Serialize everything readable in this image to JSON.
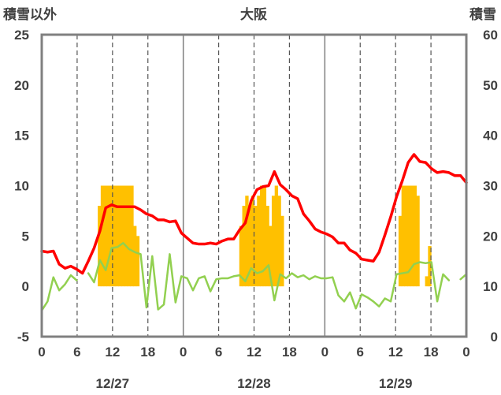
{
  "chart_data": {
    "type": "bar",
    "title": "大阪",
    "left_axis_label": "積雪以外",
    "right_axis_label": "積雪",
    "ylim_left": [
      -5,
      25
    ],
    "ylim_right": [
      0,
      60
    ],
    "yticks_left": [
      "25",
      "20",
      "15",
      "10",
      "5",
      "0",
      "-5"
    ],
    "yticks_right": [
      "60",
      "50",
      "40",
      "30",
      "20",
      "10",
      "0"
    ],
    "xtick_labels": [
      "0",
      "6",
      "12",
      "18",
      "0",
      "6",
      "12",
      "18",
      "0",
      "6",
      "12",
      "18",
      "0"
    ],
    "date_labels": [
      "12/27",
      "12/28",
      "12/29"
    ],
    "grid": "vertical",
    "colors": {
      "bar": "#FFC000",
      "red_line": "#FF0000",
      "green_line": "#92D050",
      "purple_line": "#7030A0",
      "frame": "#808080"
    },
    "series": [
      {
        "kind": "bar",
        "values": [
          0,
          0,
          0,
          0,
          0,
          0,
          0,
          0,
          0,
          0,
          0,
          0,
          0,
          0,
          0,
          0,
          0,
          0,
          0,
          8,
          10,
          10,
          10,
          10,
          10,
          10,
          10,
          10,
          10,
          10,
          10,
          6,
          5,
          0,
          0,
          0,
          0,
          0,
          0,
          0,
          0,
          0,
          0,
          0,
          0,
          0,
          0,
          0,
          0,
          0,
          0,
          0,
          0,
          0,
          0,
          0,
          0,
          0,
          0,
          0,
          0,
          0,
          0,
          0,
          0,
          0,
          0,
          6,
          8,
          9,
          8,
          9,
          8,
          9,
          10,
          10,
          8,
          6,
          9,
          10,
          9,
          7,
          0,
          0,
          0,
          0,
          0,
          0,
          0,
          0,
          0,
          0,
          0,
          0,
          0,
          0,
          0,
          0,
          0,
          0,
          0,
          0,
          0,
          0,
          0,
          0,
          0,
          0,
          0,
          0,
          0,
          0,
          0,
          0,
          0,
          0,
          0,
          0,
          0,
          0,
          0,
          7,
          10,
          10,
          10,
          10,
          10,
          9,
          0,
          0,
          1,
          4,
          0,
          0,
          0,
          0,
          0,
          0,
          0,
          0,
          0,
          0
        ]
      },
      {
        "kind": "line",
        "values": [
          3.5,
          3.4,
          3.5,
          2.2,
          1.8,
          2.0,
          1.7,
          1.3,
          2.5,
          3.8,
          5.5,
          7.8,
          8.1,
          7.9,
          7.9,
          7.9,
          7.9,
          7.6,
          7.2,
          7.0,
          6.6,
          6.6,
          6.4,
          6.5,
          5.3,
          4.8,
          4.3,
          4.2,
          4.2,
          4.3,
          4.2,
          4.5,
          4.7,
          4.7,
          5.6,
          6.3,
          8.5,
          9.6,
          9.9,
          10.0,
          11.4,
          10.1,
          9.6,
          9.0,
          8.7,
          7.2,
          6.5,
          5.7,
          5.4,
          5.2,
          4.9,
          4.3,
          4.3,
          3.6,
          3.3,
          2.7,
          2.6,
          2.5,
          3.4,
          5.1,
          6.9,
          8.9,
          10.5,
          12.3,
          13.1,
          12.4,
          12.3,
          11.7,
          11.3,
          11.4,
          11.3,
          11.0,
          11.0,
          10.3
        ]
      },
      {
        "kind": "line",
        "values": [
          -2.4,
          -1.5,
          0.9,
          -0.4,
          0.2,
          1.1,
          0.6,
          null,
          1.3,
          0.4,
          2.6,
          1.6,
          3.8,
          3.9,
          4.3,
          3.7,
          3.4,
          3.2,
          -2.1,
          3.0,
          -2.3,
          -1.8,
          3.2,
          -1.6,
          1.0,
          0.8,
          -0.4,
          0.8,
          1.0,
          -0.5,
          0.7,
          0.8,
          0.8,
          1.0,
          1.1,
          0.5,
          1.8,
          1.3,
          1.5,
          2.1,
          -1.4,
          1.2,
          0.8,
          1.3,
          0.9,
          1.1,
          0.7,
          1.0,
          0.8,
          0.8,
          0.9,
          -0.9,
          -1.5,
          -0.6,
          -2.2,
          -0.8,
          -1.1,
          -1.5,
          -2.0,
          -1.2,
          -1.5,
          1.2,
          1.3,
          1.4,
          2.2,
          2.4,
          2.3,
          2.4,
          -1.5,
          1.2,
          0.6,
          null,
          0.7,
          1.2
        ]
      },
      {
        "kind": "line",
        "values": [
          -5,
          -5
        ]
      }
    ]
  }
}
